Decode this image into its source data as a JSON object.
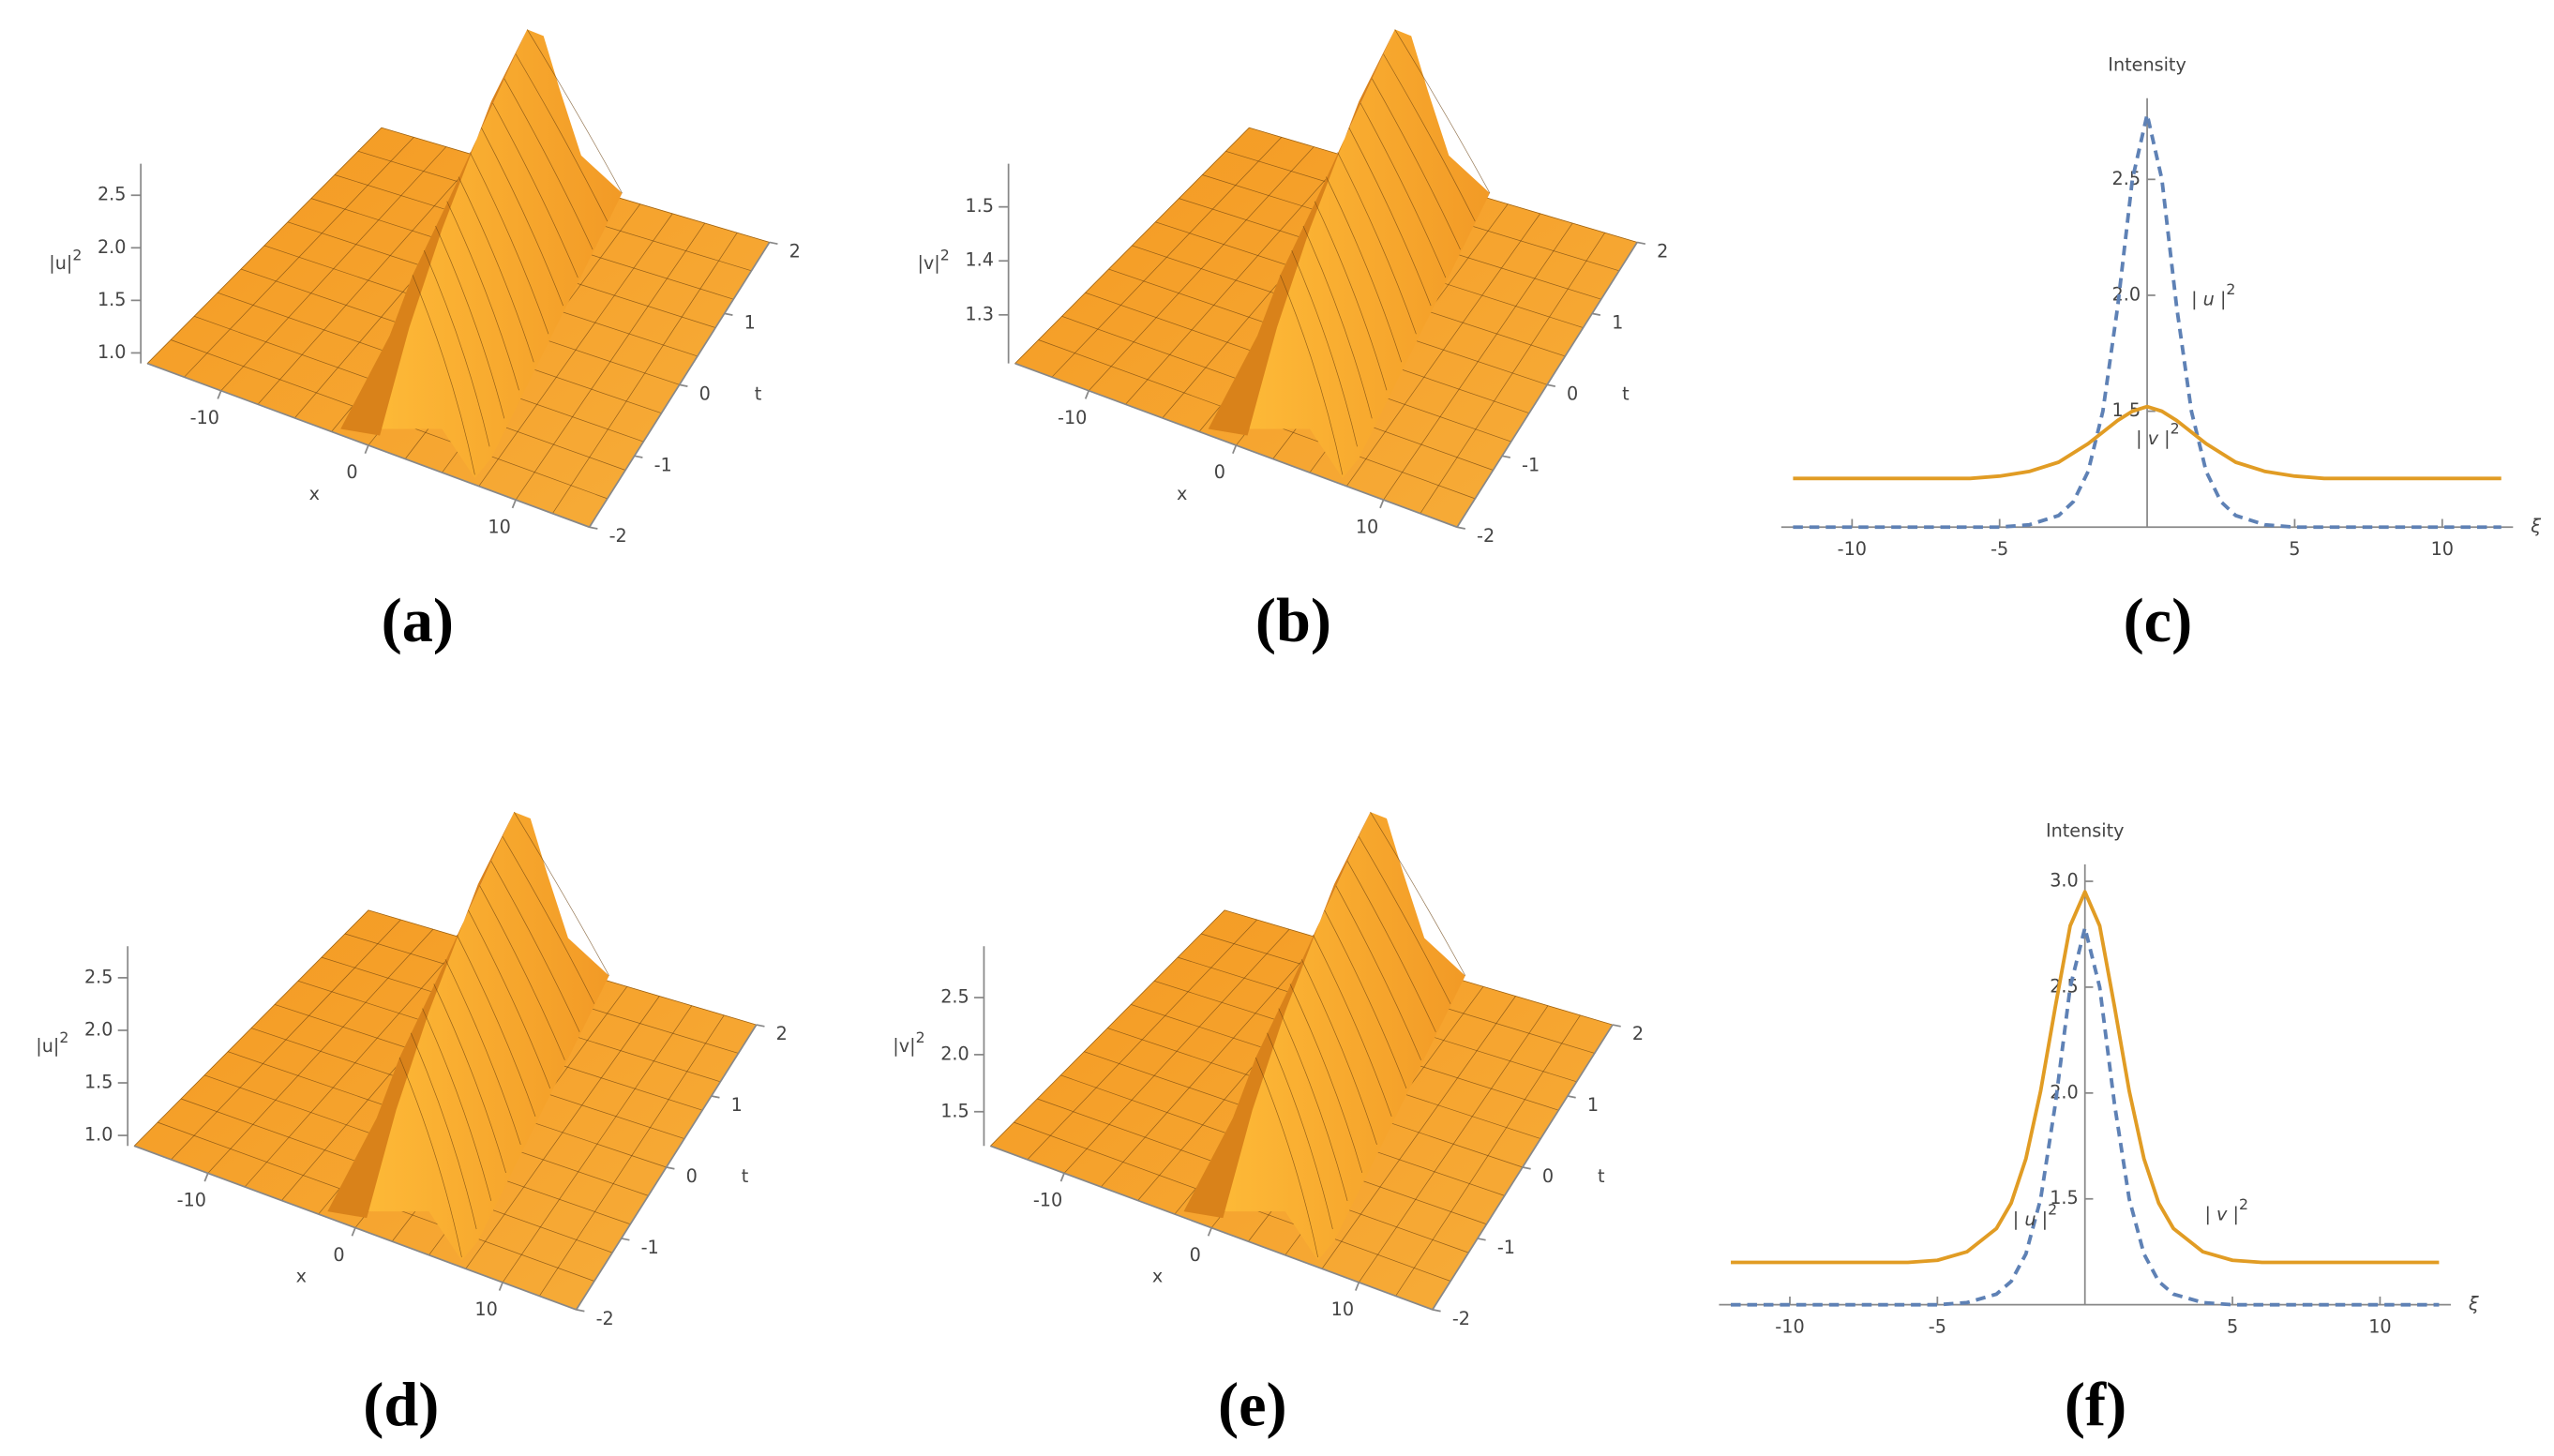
{
  "chart_data": [
    {
      "type": "surface",
      "caption": "(a)",
      "xlabel": "x",
      "ylabel": "t",
      "zlabel": {
        "text": "|u|",
        "sup": "2"
      },
      "xlim": [
        -15,
        15
      ],
      "xticks": [
        -10,
        0,
        10
      ],
      "ylim": [
        -2,
        2
      ],
      "yticks": [
        -2,
        -1,
        0,
        1,
        2
      ],
      "zlim": [
        0.9,
        2.8
      ],
      "zticks": [
        {
          "value": 1,
          "label": "1.0"
        },
        1.5,
        {
          "value": 2,
          "label": "2.0"
        },
        2.5
      ],
      "color": "#f5a22a"
    },
    {
      "type": "surface",
      "caption": "(b)",
      "xlabel": "x",
      "ylabel": "t",
      "zlabel": {
        "text": "|v|",
        "sup": "2"
      },
      "xlim": [
        -15,
        15
      ],
      "xticks": [
        -10,
        0,
        10
      ],
      "ylim": [
        -2,
        2
      ],
      "yticks": [
        -2,
        -1,
        0,
        1,
        2
      ],
      "zlim": [
        1.21,
        1.58
      ],
      "zticks": [
        1.3,
        1.4,
        1.5
      ],
      "color": "#f5a22a"
    },
    {
      "type": "line",
      "caption": "(c)",
      "ylabel": "Intensity",
      "xlabel": "ξ",
      "x": [
        -12,
        -10,
        -8,
        -6,
        -5,
        -4,
        -3,
        -2.5,
        -2,
        -1.5,
        -1,
        -0.5,
        0,
        0.5,
        1,
        1.5,
        2,
        2.5,
        3,
        4,
        5,
        6,
        8,
        10,
        12
      ],
      "xlim": [
        -12.4,
        12.4
      ],
      "xticks": [
        -10,
        -5,
        5,
        10
      ],
      "ylim": [
        1.0,
        2.85
      ],
      "yticks": [
        1.5,
        {
          "value": 2,
          "label": "2.0"
        },
        2.5
      ],
      "series": [
        {
          "name": "| u |",
          "name_sup": "2",
          "color": "#5e81b5",
          "dash": true,
          "values": [
            1.0,
            1.0,
            1.0,
            1.0,
            1.0,
            1.01,
            1.05,
            1.11,
            1.24,
            1.5,
            1.95,
            2.5,
            2.78,
            2.5,
            1.95,
            1.5,
            1.24,
            1.11,
            1.05,
            1.01,
            1.0,
            1.0,
            1.0,
            1.0,
            1.0
          ]
        },
        {
          "name": "| v |",
          "name_sup": "2",
          "color": "#e19c24",
          "dash": false,
          "values": [
            1.21,
            1.21,
            1.21,
            1.21,
            1.22,
            1.24,
            1.28,
            1.32,
            1.36,
            1.41,
            1.46,
            1.5,
            1.52,
            1.5,
            1.46,
            1.41,
            1.36,
            1.32,
            1.28,
            1.24,
            1.22,
            1.21,
            1.21,
            1.21,
            1.21
          ]
        }
      ]
    },
    {
      "type": "surface",
      "caption": "(d)",
      "xlabel": "x",
      "ylabel": "t",
      "zlabel": {
        "text": "|u|",
        "sup": "2"
      },
      "xlim": [
        -15,
        15
      ],
      "xticks": [
        -10,
        0,
        10
      ],
      "ylim": [
        -2,
        2
      ],
      "yticks": [
        -2,
        -1,
        0,
        1,
        2
      ],
      "zlim": [
        0.9,
        2.8
      ],
      "zticks": [
        {
          "value": 1,
          "label": "1.0"
        },
        1.5,
        {
          "value": 2,
          "label": "2.0"
        },
        2.5
      ],
      "color": "#f5a22a"
    },
    {
      "type": "surface",
      "caption": "(e)",
      "xlabel": "x",
      "ylabel": "t",
      "zlabel": {
        "text": "|v|",
        "sup": "2"
      },
      "xlim": [
        -15,
        15
      ],
      "xticks": [
        -10,
        0,
        10
      ],
      "ylim": [
        -2,
        2
      ],
      "yticks": [
        -2,
        -1,
        0,
        1,
        2
      ],
      "zlim": [
        1.2,
        2.95
      ],
      "zticks": [
        1.5,
        {
          "value": 2,
          "label": "2.0"
        },
        2.5
      ],
      "color": "#f5a22a"
    },
    {
      "type": "line",
      "caption": "(f)",
      "ylabel": "Intensity",
      "xlabel": "ξ",
      "x": [
        -12,
        -10,
        -8,
        -6,
        -5,
        -4,
        -3,
        -2.5,
        -2,
        -1.5,
        -1,
        -0.5,
        0,
        0.5,
        1,
        1.5,
        2,
        2.5,
        3,
        4,
        5,
        6,
        8,
        10,
        12
      ],
      "xlim": [
        -12.4,
        12.4
      ],
      "xticks": [
        -10,
        -5,
        5,
        10
      ],
      "ylim": [
        1.0,
        3.08
      ],
      "yticks": [
        1.5,
        {
          "value": 2,
          "label": "2.0"
        },
        2.5,
        {
          "value": 3,
          "label": "3.0"
        }
      ],
      "series": [
        {
          "name": "| u |",
          "name_sup": "2",
          "color": "#5e81b5",
          "dash": true,
          "values": [
            1.0,
            1.0,
            1.0,
            1.0,
            1.0,
            1.01,
            1.05,
            1.11,
            1.24,
            1.5,
            1.95,
            2.5,
            2.78,
            2.5,
            1.95,
            1.5,
            1.24,
            1.11,
            1.05,
            1.01,
            1.0,
            1.0,
            1.0,
            1.0,
            1.0
          ]
        },
        {
          "name": "| v |",
          "name_sup": "2",
          "color": "#e19c24",
          "dash": false,
          "values": [
            1.2,
            1.2,
            1.2,
            1.2,
            1.21,
            1.25,
            1.36,
            1.48,
            1.69,
            2.01,
            2.41,
            2.79,
            2.95,
            2.79,
            2.41,
            2.01,
            1.69,
            1.48,
            1.36,
            1.25,
            1.21,
            1.2,
            1.2,
            1.2,
            1.2
          ]
        }
      ]
    }
  ]
}
